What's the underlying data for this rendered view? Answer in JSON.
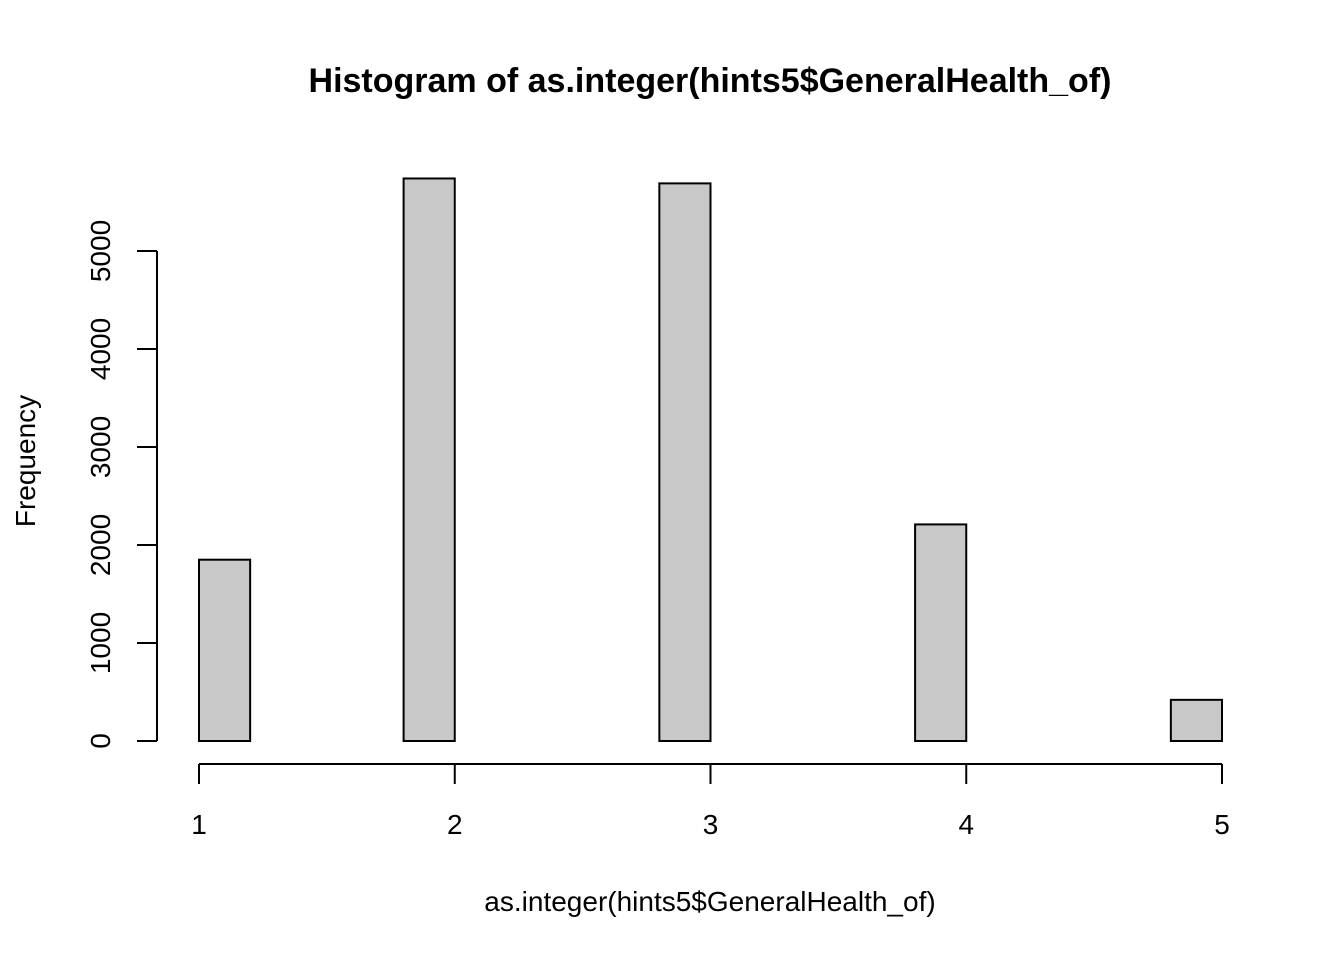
{
  "chart_data": {
    "type": "bar",
    "title": "Histogram of as.integer(hints5$GeneralHealth_of)",
    "xlabel": "as.integer(hints5$GeneralHealth_of)",
    "ylabel": "Frequency",
    "bins": [
      {
        "from": 1.0,
        "to": 1.2,
        "count": 1850
      },
      {
        "from": 1.2,
        "to": 1.4,
        "count": 0
      },
      {
        "from": 1.4,
        "to": 1.6,
        "count": 0
      },
      {
        "from": 1.6,
        "to": 1.8,
        "count": 0
      },
      {
        "from": 1.8,
        "to": 2.0,
        "count": 5740
      },
      {
        "from": 2.0,
        "to": 2.2,
        "count": 0
      },
      {
        "from": 2.2,
        "to": 2.4,
        "count": 0
      },
      {
        "from": 2.4,
        "to": 2.6,
        "count": 0
      },
      {
        "from": 2.6,
        "to": 2.8,
        "count": 0
      },
      {
        "from": 2.8,
        "to": 3.0,
        "count": 5690
      },
      {
        "from": 3.0,
        "to": 3.2,
        "count": 0
      },
      {
        "from": 3.2,
        "to": 3.4,
        "count": 0
      },
      {
        "from": 3.4,
        "to": 3.6,
        "count": 0
      },
      {
        "from": 3.6,
        "to": 3.8,
        "count": 0
      },
      {
        "from": 3.8,
        "to": 4.0,
        "count": 2210
      },
      {
        "from": 4.0,
        "to": 4.2,
        "count": 0
      },
      {
        "from": 4.2,
        "to": 4.4,
        "count": 0
      },
      {
        "from": 4.4,
        "to": 4.6,
        "count": 0
      },
      {
        "from": 4.6,
        "to": 4.8,
        "count": 0
      },
      {
        "from": 4.8,
        "to": 5.0,
        "count": 420
      }
    ],
    "xlim": [
      1,
      5
    ],
    "ylim": [
      0,
      5740
    ],
    "xticks": [
      1,
      2,
      3,
      4,
      5
    ],
    "yticks": [
      0,
      1000,
      2000,
      3000,
      4000,
      5000
    ],
    "bar_fill": "#c8c8c8",
    "bar_stroke": "#000000",
    "grid": false,
    "legend": "none"
  }
}
